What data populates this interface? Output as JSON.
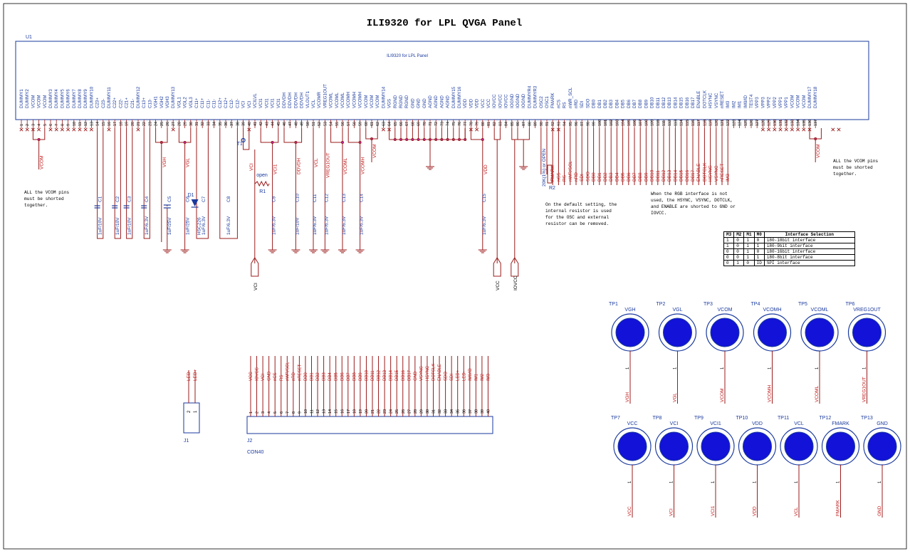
{
  "title": "ILI9320 for LPL QVGA Panel",
  "ic": {
    "ref": "U1",
    "name": "ILI9320 for LPL Panel",
    "pins": [
      "DUMMY1",
      "DUMMY2",
      "VCOM",
      "VCOM",
      "VCOM",
      "DUMMY3",
      "DUMMY4",
      "DUMMY5",
      "DUMMY6",
      "DUMMY7",
      "DUMMY8",
      "DUMMY9",
      "DUMMY10",
      "C23+",
      "C23-",
      "DUMMY11",
      "C22+",
      "C22-",
      "C21+",
      "C21-",
      "DUMMY12",
      "C13+",
      "C13-",
      "VGH1",
      "VGH2",
      "VGH3",
      "DUMMY13",
      "VGL1",
      "VGL2",
      "VGL3",
      "C11+",
      "C11+",
      "C11-",
      "C11-",
      "C12+",
      "C12+",
      "C12-",
      "C12-",
      "VCI",
      "VCI",
      "VCILVL",
      "VCI1",
      "VCI1",
      "VCI1",
      "VCI1",
      "DDVDH",
      "DDVDH",
      "DDVDH",
      "DDVDH",
      "VLOUT1",
      "VCL",
      "VCOMR",
      "VREG1OUT",
      "VCOML",
      "VCOML",
      "VCOML",
      "VCOMH",
      "VCOMH",
      "VCOMH",
      "VCOM",
      "VCOM",
      "VCOM",
      "DUMMY14",
      "VGS",
      "RGND",
      "RGND",
      "RGND",
      "GND",
      "GND",
      "GND",
      "AGND",
      "AGND",
      "AGND",
      "AGND",
      "DUMMY15",
      "DUMMY16",
      "VDD",
      "VDD",
      "VDD",
      "VCC",
      "VCC",
      "IOVCC",
      "IOVCC",
      "IOVCC",
      "IOGND",
      "IOGND",
      "IOGND",
      "DUMMYR4",
      "DUMMYR3",
      "OSC2",
      "OSC1",
      "FMARK",
      "nCS",
      "RS",
      "nWR_SCL",
      "nRD",
      "SDI",
      "SDO",
      "DB0",
      "DB1",
      "DB2",
      "DB3",
      "DB4",
      "DB5",
      "DB6",
      "DB7",
      "DB8",
      "DB9",
      "DB10",
      "DB11",
      "DB12",
      "DB13",
      "DB14",
      "DB15",
      "DB16",
      "DB17",
      "ENABLE",
      "DOTCLK",
      "HSYNC",
      "VSYNC",
      "nRESET",
      "IM3",
      "IM2",
      "IM1",
      "IM0/ID",
      "TEST4",
      "VPP3",
      "VPP3",
      "VPP2",
      "VPP2",
      "VPP1",
      "VPP1",
      "VCOM",
      "VCOM",
      "VCOM",
      "DUMMY17",
      "DUMMY18"
    ]
  },
  "nets": {
    "vcom_left": "VCOM",
    "vgh": "VGH",
    "vgl": "VGL",
    "vci": "VCI",
    "vci1": "VCI1",
    "ddvdh": "DDVDH",
    "vcl": "VCL",
    "vreg1out": "VREG1OUT",
    "vcoml": "VCOML",
    "vcomh": "VCOMH",
    "vcom_mid": "VCOM",
    "vdd": "VDD",
    "vcom_right": "VCOM",
    "fmark": "FMARK",
    "ncs": "nCS",
    "rs": "RS",
    "nwr": "nWR/SCL",
    "nrd": "nRD",
    "sdi": "SDI",
    "sdo": "SDO",
    "r2_value": "20K(1%) or OPEN"
  },
  "ports": {
    "vci": "VCI",
    "vcc": "VCC",
    "iovcc": "IOVCC"
  },
  "capacitors": [
    {
      "ref": "C1",
      "value": "1uF/10V"
    },
    {
      "ref": "C2",
      "value": "1uF/10V"
    },
    {
      "ref": "C3",
      "value": "1uF/10V"
    },
    {
      "ref": "C4",
      "value": "1uF/6.3V"
    },
    {
      "ref": "C5",
      "value": "1uF/25V"
    },
    {
      "ref": "C6",
      "value": "1uF/25V"
    },
    {
      "ref": "C7",
      "value": "1uF/6.3V"
    },
    {
      "ref": "C8",
      "value": "1uF/6.3V"
    },
    {
      "ref": "C9",
      "value": "1uF/6.3V"
    },
    {
      "ref": "C10",
      "value": "1uF/10V"
    },
    {
      "ref": "C11",
      "value": "1uF/6.3V"
    },
    {
      "ref": "C12",
      "value": "1uF/6.3V"
    },
    {
      "ref": "C13",
      "value": "1uF/6.3V"
    },
    {
      "ref": "C14",
      "value": "1uF/6.3V"
    },
    {
      "ref": "C15",
      "value": "1uF/6.3V"
    }
  ],
  "diode": {
    "ref": "D1",
    "part": "HSC226"
  },
  "resistor_r1": {
    "ref": "R1",
    "label": "open"
  },
  "resistor_r2": {
    "ref": "R2"
  },
  "testpoint_t1": "T1",
  "notes": {
    "vcom_left": "ALL the VCOM pins\nmust be shorted\ntogether.",
    "vcom_right": "ALL the VCOM pins\nmust be shorted\ntogether.",
    "osc": "On the default setting, the\ninternal resistor is used\nfor the OSC and external\nresistor can be removed.",
    "rgb": "When the RGB interface is not\nused, the HSYNC, VSYNC, DOTCLK,\nand ENABLE are shorted to GND or\nIOVCC."
  },
  "interface_table": {
    "headers": [
      "M3",
      "M2",
      "M1",
      "M0",
      "Interface Selection"
    ],
    "rows": [
      [
        "1",
        "0",
        "1",
        "0",
        "i80-18bit interface"
      ],
      [
        "1",
        "0",
        "1",
        "1",
        "i80-9bit interface"
      ],
      [
        "0",
        "0",
        "1",
        "0",
        "i80-16bit interface"
      ],
      [
        "0",
        "0",
        "1",
        "1",
        "i80-8bit interface"
      ],
      [
        "0",
        "1",
        "0",
        "ID",
        "SPI interface"
      ]
    ]
  },
  "test_points_row1": [
    {
      "ref": "TP1",
      "net": "VGH"
    },
    {
      "ref": "TP2",
      "net": "VGL"
    },
    {
      "ref": "TP3",
      "net": "VCOM"
    },
    {
      "ref": "TP4",
      "net": "VCOMH"
    },
    {
      "ref": "TP5",
      "net": "VCOML"
    },
    {
      "ref": "TP6",
      "net": "VREG1OUT"
    }
  ],
  "test_points_row2": [
    {
      "ref": "TP7",
      "net": "VCC"
    },
    {
      "ref": "TP8",
      "net": "VCI"
    },
    {
      "ref": "TP9",
      "net": "VCI1"
    },
    {
      "ref": "TP10",
      "net": "VDD"
    },
    {
      "ref": "TP11",
      "net": "VCL"
    },
    {
      "ref": "TP12",
      "net": "FMARK"
    },
    {
      "ref": "TP13",
      "net": "GND"
    }
  ],
  "tp_pin": "1",
  "j1": {
    "ref": "J1",
    "pins": [
      "2",
      "1"
    ],
    "nets": [
      "LED-",
      "LED+"
    ]
  },
  "j2": {
    "ref": "J2",
    "part": "CON40",
    "nets": [
      "VCC",
      "IOVCC",
      "VCI",
      "GND",
      "nCS",
      "RS",
      "nWR/SCL",
      "nRD",
      "nRESET",
      "DB0",
      "DB1",
      "DB2",
      "DB3",
      "DB4",
      "DB5",
      "DB6",
      "DB7",
      "DB8",
      "DB9",
      "DB10",
      "DB11",
      "DB12",
      "DB13",
      "DB14",
      "DB15",
      "DB16",
      "DB17",
      "GND",
      "VSYNC",
      "HSYNC",
      "DOTCLK",
      "ENABLE",
      "SDO",
      "SDI",
      "LED+",
      "LED-",
      "IM0/ID",
      "IM1",
      "IM2",
      "IM3"
    ]
  }
}
